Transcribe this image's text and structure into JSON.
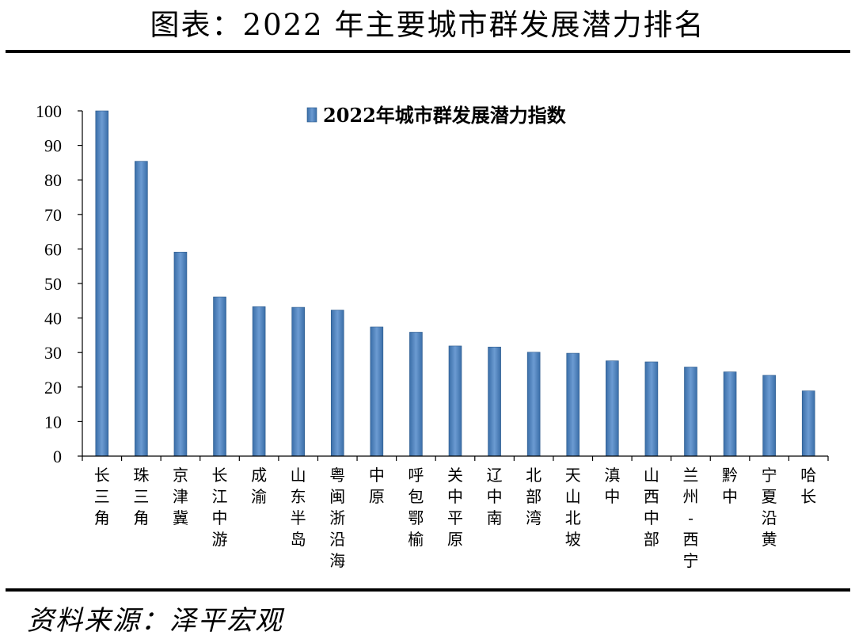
{
  "header": {
    "title": "图表：2022 年主要城市群发展潜力排名"
  },
  "footer": {
    "source": "资料来源：泽平宏观"
  },
  "colors": {
    "bar_fill": "#4f81bd",
    "bar_edge": "#2c5a8c",
    "axis": "#000000"
  },
  "chart_data": {
    "type": "bar",
    "title": "",
    "xlabel": "",
    "ylabel": "",
    "ylim": [
      0,
      100
    ],
    "yticks": [
      0,
      10,
      20,
      30,
      40,
      50,
      60,
      70,
      80,
      90,
      100
    ],
    "grid": false,
    "legend_position": "top-center",
    "categories": [
      "长三角",
      "珠三角",
      "京津冀",
      "长江中游",
      "成渝",
      "山东半岛",
      "粤闽浙沿海",
      "中原",
      "呼包鄂榆",
      "关中平原",
      "辽中南",
      "北部湾",
      "天山北坡",
      "滇中",
      "山西中部",
      "兰州-西宁",
      "黔中",
      "宁夏沿黄",
      "哈长"
    ],
    "series": [
      {
        "name": "2022年城市群发展潜力指数",
        "values": [
          100,
          85.4,
          59.1,
          46.1,
          43.3,
          43.1,
          42.3,
          37.4,
          35.9,
          31.9,
          31.6,
          30.1,
          29.8,
          27.6,
          27.3,
          25.8,
          24.4,
          23.4,
          18.9
        ]
      }
    ]
  }
}
